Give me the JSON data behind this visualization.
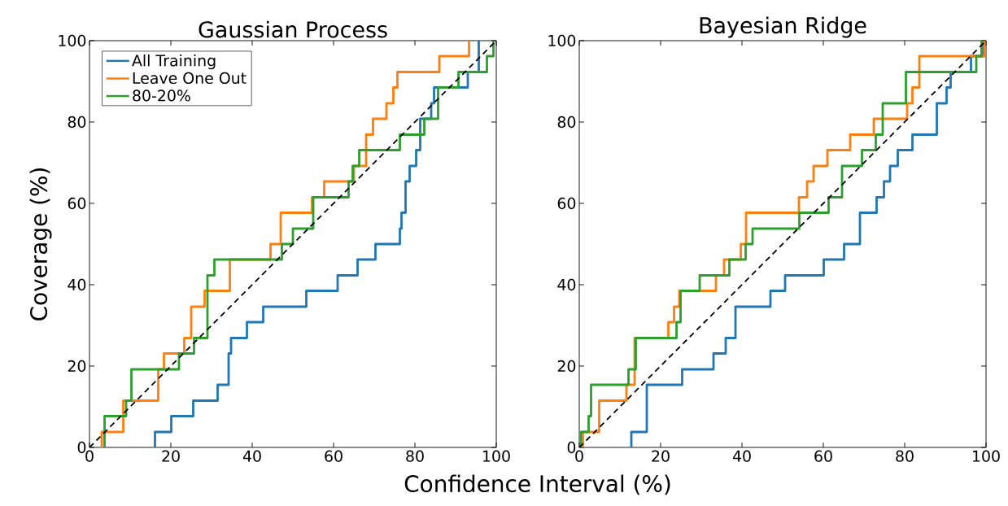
{
  "chart_data": [
    {
      "type": "line",
      "title": "Gaussian Process",
      "xlabel": "Confidence Interval (%)",
      "ylabel": "Coverage (%)",
      "xlim": [
        0,
        100
      ],
      "ylim": [
        0,
        100
      ],
      "xticks": [
        0,
        20,
        40,
        60,
        80,
        100
      ],
      "yticks": [
        0,
        20,
        40,
        60,
        80,
        100
      ],
      "legend": "top left",
      "series": [
        {
          "name": "All Training",
          "type": "step",
          "color": "#1f77b4",
          "x": [
            16.1,
            16.1,
            20.1,
            25.5,
            31.5,
            34.2,
            34.8,
            38.7,
            42.7,
            53.3,
            61,
            65.9,
            70.3,
            76.3,
            76.7,
            77.7,
            78.7,
            80.3,
            81.3,
            84,
            84.7,
            93,
            95.7
          ],
          "values": [
            0,
            3.8,
            7.7,
            11.5,
            15.4,
            23.1,
            26.9,
            30.8,
            34.6,
            38.5,
            42.3,
            46.2,
            50,
            53.8,
            57.7,
            65.4,
            69.2,
            73.1,
            80.8,
            84.6,
            88.5,
            92.3,
            100
          ]
        },
        {
          "name": "Leave One Out",
          "type": "step",
          "color": "#ff7f0e",
          "x": [
            3,
            3,
            8.3,
            16.9,
            18.3,
            23.3,
            25,
            28.3,
            34.5,
            44.5,
            47,
            54.7,
            57.7,
            65,
            68,
            69.7,
            73,
            74.7,
            75.7,
            86,
            93.3
          ],
          "values": [
            0,
            3.8,
            11.5,
            19.2,
            23.1,
            26.9,
            34.6,
            38.5,
            46.2,
            50,
            57.7,
            61.5,
            65.4,
            69.2,
            76.9,
            80.8,
            84.6,
            88.5,
            92.3,
            96.2,
            100
          ]
        },
        {
          "name": "80-20%",
          "type": "step",
          "color": "#2ca02c",
          "x": [
            3.7,
            3.7,
            9,
            10.3,
            22,
            25.7,
            29,
            30.7,
            47.3,
            50,
            55,
            63.7,
            64.7,
            66.3,
            76.3,
            82.3,
            85.7,
            90.7,
            97.7,
            99.3
          ],
          "values": [
            0,
            7.7,
            11.5,
            19.2,
            23.1,
            26.9,
            42.3,
            46.2,
            50,
            53.8,
            61.5,
            65.4,
            69.2,
            73.1,
            76.9,
            80.8,
            88.5,
            92.3,
            96.2,
            100
          ]
        },
        {
          "type": "line",
          "color": "#000000",
          "line_style": "dashed",
          "x": [
            0,
            100
          ],
          "values": [
            0,
            100
          ]
        }
      ]
    },
    {
      "type": "line",
      "title": "Bayesian Ridge",
      "xlim": [
        0,
        100
      ],
      "ylim": [
        0,
        100
      ],
      "xticks": [
        0,
        20,
        40,
        60,
        80,
        100
      ],
      "yticks": [
        0,
        20,
        40,
        60,
        80,
        100
      ],
      "series": [
        {
          "type": "step",
          "color": "#1f77b4",
          "x": [
            12.8,
            12.8,
            16.6,
            25.3,
            33,
            36,
            38.4,
            47,
            50.6,
            60.1,
            65.1,
            69,
            73.1,
            74.9,
            76.4,
            78.3,
            81.9,
            87.9,
            90.3,
            91.3,
            96.3,
            99.3
          ],
          "values": [
            0,
            3.8,
            15.4,
            19.2,
            23.1,
            26.9,
            34.6,
            38.5,
            42.3,
            46.2,
            50,
            57.7,
            61.5,
            65.4,
            69.2,
            73.1,
            76.9,
            84.6,
            88.5,
            92.3,
            96.2,
            100
          ]
        },
        {
          "type": "step",
          "color": "#ff7f0e",
          "x": [
            0.9,
            0.9,
            4.9,
            11.6,
            13.6,
            21.9,
            23.3,
            24.6,
            33.6,
            35.6,
            39.7,
            41,
            54,
            56,
            57.6,
            61,
            66.6,
            72.4,
            80.6,
            81.9,
            83.6,
            99.6
          ],
          "values": [
            0,
            3.8,
            11.5,
            15.4,
            26.9,
            30.8,
            34.6,
            38.5,
            42.3,
            46.2,
            50,
            57.7,
            61.5,
            65.4,
            69.2,
            73.1,
            76.9,
            80.8,
            84.6,
            88.5,
            96.2,
            100
          ]
        },
        {
          "type": "step",
          "color": "#2ca02c",
          "x": [
            0.4,
            0.4,
            2.3,
            2.9,
            12.1,
            13.9,
            23.9,
            24.9,
            29.6,
            36.9,
            40.9,
            42.6,
            54.1,
            61.3,
            64.6,
            69.5,
            72.9,
            74.6,
            80.3,
            97.6,
            98.9
          ],
          "values": [
            0,
            3.8,
            7.7,
            15.4,
            19.2,
            26.9,
            30.8,
            38.5,
            42.3,
            46.2,
            50,
            53.8,
            57.7,
            61.5,
            69.2,
            73.1,
            76.9,
            84.6,
            92.3,
            96.2,
            100
          ]
        },
        {
          "type": "line",
          "color": "#000000",
          "line_style": "dashed",
          "x": [
            0,
            100
          ],
          "values": [
            0,
            100
          ]
        }
      ]
    }
  ]
}
